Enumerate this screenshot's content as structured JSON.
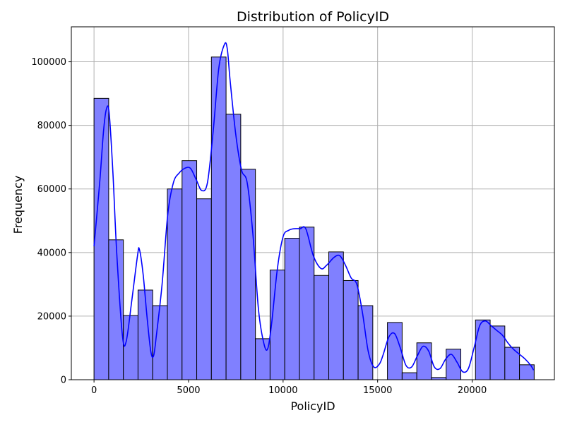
{
  "chart_data": {
    "type": "bar",
    "title": "Distribution of PolicyID",
    "xlabel": "PolicyID",
    "ylabel": "Frequency",
    "xlim": [
      -1200,
      24350
    ],
    "ylim": [
      0,
      111000
    ],
    "xticks": [
      0,
      5000,
      10000,
      15000,
      20000
    ],
    "yticks": [
      0,
      20000,
      40000,
      60000,
      80000,
      100000
    ],
    "grid": true,
    "bin_width": 776,
    "bins": [
      {
        "x0": 0,
        "value": 88500
      },
      {
        "x0": 776,
        "value": 44000
      },
      {
        "x0": 1552,
        "value": 20200
      },
      {
        "x0": 2328,
        "value": 28200
      },
      {
        "x0": 3104,
        "value": 23300
      },
      {
        "x0": 3880,
        "value": 60000
      },
      {
        "x0": 4656,
        "value": 68900
      },
      {
        "x0": 5432,
        "value": 56900
      },
      {
        "x0": 6208,
        "value": 101500
      },
      {
        "x0": 6984,
        "value": 83500
      },
      {
        "x0": 7760,
        "value": 66200
      },
      {
        "x0": 8536,
        "value": 12900
      },
      {
        "x0": 9312,
        "value": 34500
      },
      {
        "x0": 10088,
        "value": 44500
      },
      {
        "x0": 10864,
        "value": 48000
      },
      {
        "x0": 11640,
        "value": 32800
      },
      {
        "x0": 12416,
        "value": 40200
      },
      {
        "x0": 13192,
        "value": 31200
      },
      {
        "x0": 13968,
        "value": 23300
      },
      {
        "x0": 14744,
        "value": 0
      },
      {
        "x0": 15520,
        "value": 18000
      },
      {
        "x0": 16296,
        "value": 2200
      },
      {
        "x0": 17072,
        "value": 11600
      },
      {
        "x0": 17848,
        "value": 700
      },
      {
        "x0": 18624,
        "value": 9600
      },
      {
        "x0": 19400,
        "value": 0
      },
      {
        "x0": 20176,
        "value": 18800
      },
      {
        "x0": 20952,
        "value": 16900
      },
      {
        "x0": 21728,
        "value": 10200
      },
      {
        "x0": 22504,
        "value": 4700
      }
    ],
    "kde": {
      "x": [
        0,
        300,
        500,
        650,
        800,
        1000,
        1200,
        1500,
        1700,
        2000,
        2300,
        2400,
        2600,
        2800,
        3000,
        3150,
        3300,
        3600,
        3900,
        4200,
        4500,
        4800,
        5100,
        5400,
        5700,
        6000,
        6300,
        6600,
        6900,
        7050,
        7200,
        7500,
        7800,
        8100,
        8400,
        8700,
        9000,
        9200,
        9400,
        9700,
        10000,
        10300,
        10600,
        10900,
        11200,
        11600,
        12000,
        12300,
        12700,
        13000,
        13300,
        13600,
        13900,
        14200,
        14500,
        14800,
        15100,
        15300,
        15600,
        15900,
        16200,
        16500,
        16800,
        17100,
        17400,
        17700,
        18000,
        18300,
        18600,
        18900,
        19200,
        19500,
        19800,
        20100,
        20400,
        20700,
        21000,
        21300,
        21600,
        21900,
        22200,
        22500,
        22800,
        23100,
        23250
      ],
      "y": [
        42000,
        62000,
        78000,
        85000,
        84000,
        65000,
        40000,
        14000,
        12000,
        25000,
        39000,
        41000,
        33000,
        20000,
        9000,
        7500,
        14000,
        30000,
        52000,
        62000,
        65000,
        66500,
        66500,
        63000,
        59500,
        62000,
        78000,
        98000,
        105500,
        104000,
        94000,
        77000,
        66000,
        62000,
        46000,
        22000,
        11000,
        10000,
        18000,
        35000,
        45000,
        47000,
        47500,
        47500,
        47500,
        39000,
        35000,
        36000,
        38500,
        39000,
        36000,
        32000,
        30000,
        21000,
        9000,
        4000,
        5000,
        8000,
        13500,
        14500,
        10000,
        4500,
        4000,
        7500,
        10500,
        9000,
        4000,
        3500,
        6500,
        8000,
        5500,
        2500,
        3500,
        10000,
        17000,
        18500,
        17000,
        15500,
        14000,
        11500,
        9500,
        8000,
        6500,
        4500,
        3000
      ]
    }
  }
}
